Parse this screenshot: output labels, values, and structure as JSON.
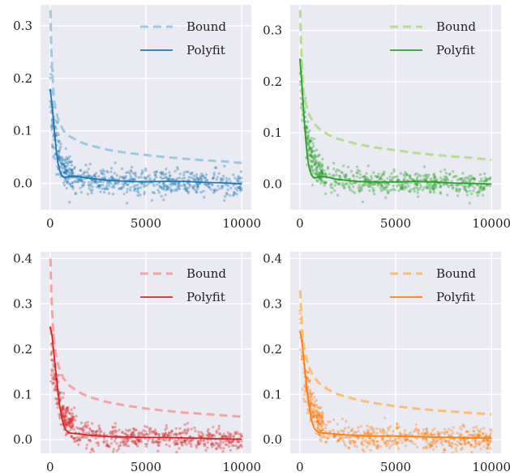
{
  "chart_data": [
    {
      "type": "scatter",
      "position": "top-left",
      "grid": true,
      "legend_placement": "top-right",
      "xlim": [
        -500,
        10500
      ],
      "ylim": [
        -0.05,
        0.34
      ],
      "xticks": [
        0,
        5000,
        10000
      ],
      "yticks": [
        0.0,
        0.1,
        0.2,
        0.3
      ],
      "colors": {
        "fit": "#1f77b4",
        "bound": "#9ecae1",
        "scatter": "#1f77b4"
      },
      "series": [
        {
          "name": "Bound",
          "style": "dashed",
          "x": [
            20,
            60,
            100,
            150,
            200,
            300,
            400,
            500,
            700,
            1000,
            1500,
            2000,
            3000,
            4000,
            5000,
            6000,
            7000,
            8000,
            9000,
            10000
          ],
          "y": [
            0.33,
            0.26,
            0.22,
            0.19,
            0.16,
            0.14,
            0.125,
            0.115,
            0.1,
            0.09,
            0.08,
            0.073,
            0.064,
            0.058,
            0.054,
            0.05,
            0.047,
            0.044,
            0.042,
            0.039
          ]
        },
        {
          "name": "Polyfit",
          "style": "solid",
          "x": [
            0,
            100,
            200,
            300,
            400,
            500,
            600,
            700,
            800,
            1000,
            1200,
            1500,
            2000,
            3000,
            4000,
            5000,
            6000,
            7000,
            8000,
            9000,
            10000
          ],
          "y": [
            0.18,
            0.15,
            0.11,
            0.07,
            0.04,
            0.025,
            0.015,
            0.012,
            0.012,
            0.013,
            0.014,
            0.013,
            0.01,
            0.006,
            0.004,
            0.003,
            0.004,
            0.004,
            0.002,
            0.001,
            -0.001
          ]
        }
      ],
      "scatter": {
        "peak": 0.17,
        "decay": 400,
        "noise": 0.012,
        "tail": 0.005
      }
    },
    {
      "type": "scatter",
      "position": "top-right",
      "grid": true,
      "legend_placement": "top-right",
      "xlim": [
        -500,
        10500
      ],
      "ylim": [
        -0.05,
        0.35
      ],
      "xticks": [
        0,
        5000,
        10000
      ],
      "yticks": [
        0.0,
        0.1,
        0.2,
        0.3
      ],
      "colors": {
        "fit": "#2ca02c",
        "bound": "#b5de8f",
        "scatter": "#2ca02c"
      },
      "series": [
        {
          "name": "Bound",
          "style": "dashed",
          "x": [
            20,
            60,
            100,
            150,
            200,
            300,
            400,
            500,
            700,
            1000,
            1500,
            2000,
            3000,
            4000,
            5000,
            6000,
            7000,
            8000,
            9000,
            10000
          ],
          "y": [
            0.34,
            0.28,
            0.24,
            0.21,
            0.18,
            0.16,
            0.145,
            0.135,
            0.12,
            0.108,
            0.096,
            0.088,
            0.078,
            0.071,
            0.066,
            0.061,
            0.057,
            0.054,
            0.051,
            0.047
          ]
        },
        {
          "name": "Polyfit",
          "style": "solid",
          "x": [
            0,
            100,
            200,
            300,
            400,
            500,
            600,
            700,
            800,
            1000,
            1200,
            1500,
            2000,
            3000,
            4000,
            5000,
            6000,
            7000,
            8000,
            9000,
            10000
          ],
          "y": [
            0.245,
            0.2,
            0.14,
            0.09,
            0.05,
            0.03,
            0.018,
            0.013,
            0.012,
            0.014,
            0.015,
            0.013,
            0.009,
            0.005,
            0.004,
            0.004,
            0.005,
            0.004,
            0.002,
            0.001,
            0.0
          ]
        }
      ],
      "scatter": {
        "peak": 0.23,
        "decay": 420,
        "noise": 0.012,
        "tail": 0.005
      }
    },
    {
      "type": "scatter",
      "position": "bottom-left",
      "grid": true,
      "legend_placement": "top-right",
      "xlim": [
        -500,
        10500
      ],
      "ylim": [
        -0.03,
        0.415
      ],
      "xticks": [
        0,
        5000,
        10000
      ],
      "yticks": [
        0.0,
        0.1,
        0.2,
        0.3,
        0.4
      ],
      "colors": {
        "fit": "#d62728",
        "bound": "#f7a3a3",
        "scatter": "#d62728"
      },
      "series": [
        {
          "name": "Bound",
          "style": "dashed",
          "x": [
            20,
            60,
            100,
            150,
            200,
            300,
            400,
            500,
            700,
            1000,
            1500,
            2000,
            3000,
            4000,
            5000,
            6000,
            7000,
            8000,
            9000,
            10000
          ],
          "y": [
            0.4,
            0.33,
            0.29,
            0.25,
            0.22,
            0.19,
            0.17,
            0.155,
            0.135,
            0.12,
            0.105,
            0.095,
            0.083,
            0.075,
            0.069,
            0.064,
            0.06,
            0.057,
            0.054,
            0.051
          ]
        },
        {
          "name": "Polyfit",
          "style": "solid",
          "x": [
            0,
            100,
            200,
            300,
            400,
            500,
            600,
            700,
            800,
            1000,
            1200,
            1500,
            2000,
            3000,
            4000,
            5000,
            6000,
            7000,
            8000,
            9000,
            10000
          ],
          "y": [
            0.25,
            0.23,
            0.19,
            0.15,
            0.11,
            0.075,
            0.05,
            0.033,
            0.022,
            0.015,
            0.014,
            0.013,
            0.01,
            0.007,
            0.006,
            0.005,
            0.005,
            0.004,
            0.003,
            0.002,
            0.001
          ]
        },
        {
          "name": "",
          "style": "points"
        }
      ],
      "scatter": {
        "peak": 0.22,
        "decay": 500,
        "noise": 0.013,
        "tail": 0.008
      }
    },
    {
      "type": "scatter",
      "position": "bottom-right",
      "grid": true,
      "legend_placement": "top-right",
      "xlim": [
        -500,
        10500
      ],
      "ylim": [
        -0.03,
        0.415
      ],
      "xticks": [
        0,
        5000,
        10000
      ],
      "yticks": [
        0.0,
        0.1,
        0.2,
        0.3,
        0.4
      ],
      "colors": {
        "fit": "#ff7f0e",
        "bound": "#fdbf6f",
        "scatter": "#ff7f0e"
      },
      "series": [
        {
          "name": "Bound",
          "style": "dashed",
          "x": [
            20,
            60,
            100,
            150,
            200,
            300,
            400,
            500,
            700,
            1000,
            1500,
            2000,
            3000,
            4000,
            5000,
            6000,
            7000,
            8000,
            9000,
            10000
          ],
          "y": [
            0.33,
            0.29,
            0.26,
            0.23,
            0.21,
            0.185,
            0.17,
            0.158,
            0.14,
            0.125,
            0.11,
            0.1,
            0.088,
            0.08,
            0.074,
            0.069,
            0.065,
            0.062,
            0.059,
            0.056
          ]
        },
        {
          "name": "Polyfit",
          "style": "solid",
          "x": [
            0,
            100,
            200,
            300,
            400,
            500,
            600,
            700,
            800,
            1000,
            1200,
            1500,
            2000,
            3000,
            4000,
            5000,
            6000,
            7000,
            8000,
            9000,
            10000
          ],
          "y": [
            0.24,
            0.22,
            0.18,
            0.14,
            0.1,
            0.07,
            0.045,
            0.03,
            0.022,
            0.016,
            0.015,
            0.014,
            0.012,
            0.009,
            0.008,
            0.008,
            0.007,
            0.006,
            0.005,
            0.004,
            0.003
          ]
        }
      ],
      "scatter": {
        "peak": 0.22,
        "decay": 500,
        "noise": 0.013,
        "tail": 0.01
      }
    }
  ]
}
